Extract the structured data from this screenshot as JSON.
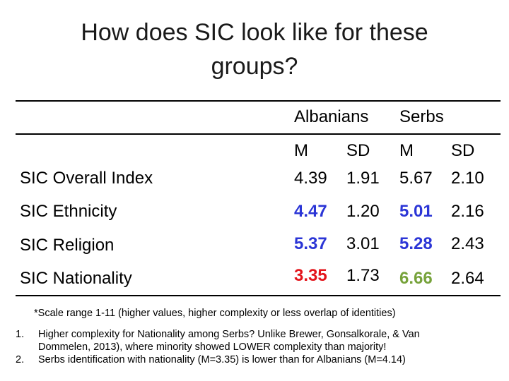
{
  "title_line1": "How does SIC look like for these",
  "title_line2": "groups?",
  "groups": [
    "Albanians",
    "Serbs"
  ],
  "stat_headers": [
    "M",
    "SD",
    "M",
    "SD"
  ],
  "rows": [
    {
      "label": "SIC Overall Index",
      "alb_m": "4.39",
      "alb_sd": "1.91",
      "srb_m": "5.67",
      "srb_sd": "2.10"
    },
    {
      "label": "SIC Ethnicity",
      "alb_m": "4.47",
      "alb_sd": "1.20",
      "srb_m": "5.01",
      "srb_sd": "2.16"
    },
    {
      "label": "SIC Religion",
      "alb_m": "5.37",
      "alb_sd": "3.01",
      "srb_m": "5.28",
      "srb_sd": "2.43"
    },
    {
      "label": "SIC Nationality",
      "alb_m": "3.35",
      "alb_sd": "1.73",
      "srb_m": "6.66",
      "srb_sd": "2.64"
    }
  ],
  "highlight_colors": {
    "blue": "#2b35d6",
    "red": "#e3141b",
    "green": "#76a23a"
  },
  "footnote": "*Scale range 1-11 (higher values, higher complexity or less overlap of identities)",
  "notes": [
    {
      "marker": "1.",
      "line1": "Higher complexity for Nationality among Serbs? Unlike Brewer, Gonsalkorale, & Van",
      "line2": "Dommelen, 2013), where minority showed LOWER complexity than majority!"
    },
    {
      "marker": "2.",
      "line1": "Serbs identification with nationality (M=3.35) is lower than for Albanians (M=4.14)"
    }
  ]
}
